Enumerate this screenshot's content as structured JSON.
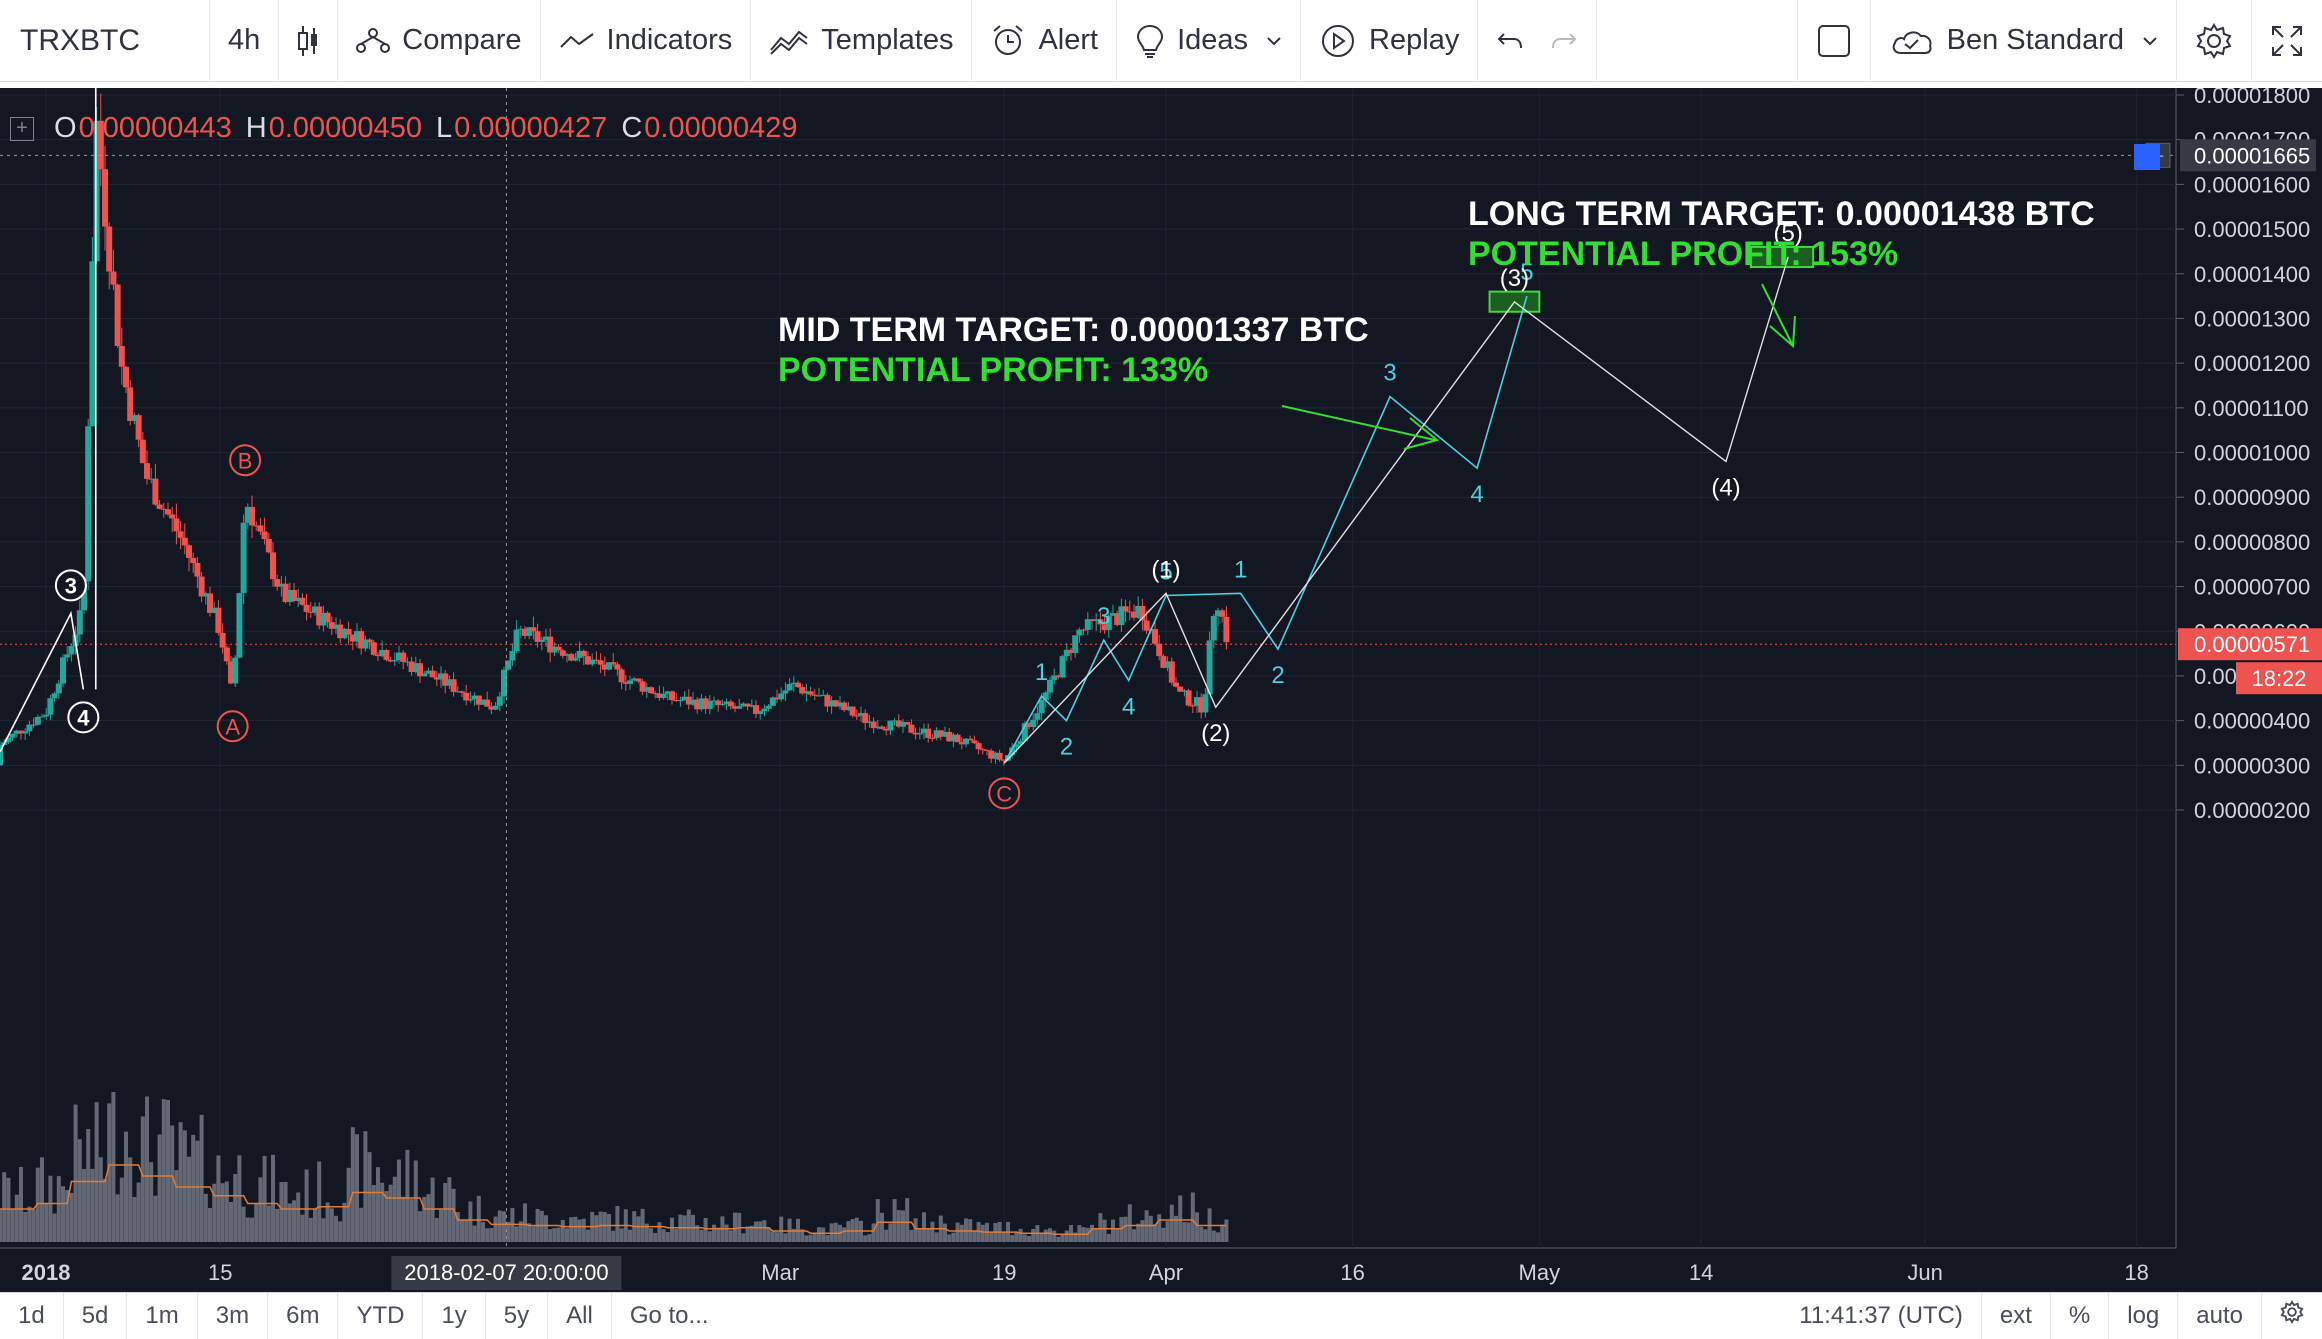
{
  "toolbar": {
    "symbol": "TRXBTC",
    "interval": "4h",
    "compare": "Compare",
    "indicators": "Indicators",
    "templates": "Templates",
    "alert": "Alert",
    "ideas": "Ideas",
    "replay": "Replay",
    "user": "Ben Standard"
  },
  "legend": {
    "o_label": "O",
    "o_value": "0.00000443",
    "h_label": "H",
    "h_value": "0.00000450",
    "l_label": "L",
    "l_value": "0.00000427",
    "c_label": "C",
    "c_value": "0.00000429"
  },
  "annotations": {
    "mid_target": "MID TERM TARGET: 0.00001337 BTC",
    "mid_profit": "POTENTIAL PROFIT: 133%",
    "long_target": "LONG TERM TARGET: 0.00001438 BTC",
    "long_profit": "POTENTIAL PROFIT: 153%"
  },
  "bottom_bar": {
    "ranges": [
      "1d",
      "5d",
      "1m",
      "3m",
      "6m",
      "YTD",
      "1y",
      "5y",
      "All"
    ],
    "goto": "Go to...",
    "clock": "11:41:37 (UTC)",
    "ext": "ext",
    "percent": "%",
    "log": "log",
    "auto": "auto"
  },
  "colors": {
    "background": "#131722",
    "up": "#26a69a",
    "down": "#ef5350",
    "cyan": "#4dd0e1",
    "white_wave": "#e0e0e0",
    "target_box": "#1b5e20",
    "green_text": "#33dd33"
  },
  "chart_data": {
    "type": "candlestick",
    "symbol": "TRXBTC",
    "interval": "4h",
    "y_ticks": [
      "0.00001800",
      "0.00001700",
      "0.00001600",
      "0.00001500",
      "0.00001400",
      "0.00001300",
      "0.00001200",
      "0.00001100",
      "0.00001000",
      "0.00000900",
      "0.00000800",
      "0.00000700",
      "0.00000600",
      "0.00000500",
      "0.00000400",
      "0.00000300",
      "0.00000200"
    ],
    "ylim": [
      1.7e-06,
      1.83e-05
    ],
    "x_ticks": [
      "2018",
      "15",
      "Mar",
      "19",
      "Apr",
      "16",
      "May",
      "14",
      "Jun",
      "18"
    ],
    "crosshair_time": "2018-02-07 20:00:00",
    "crosshair_price": "0.00001665",
    "last_price": "0.00000571",
    "countdown": "18:22",
    "price_path": [
      {
        "date": "2017-12-26",
        "price": 3e-06
      },
      {
        "date": "2018-01-01",
        "price": 4.2e-06
      },
      {
        "date": "2018-01-04",
        "price": 6.5e-06
      },
      {
        "date": "2018-01-05",
        "price": 1.75e-05
      },
      {
        "date": "2018-01-07",
        "price": 1.2e-05
      },
      {
        "date": "2018-01-09",
        "price": 9.5e-06
      },
      {
        "date": "2018-01-12",
        "price": 8e-06
      },
      {
        "date": "2018-01-15",
        "price": 6e-06
      },
      {
        "date": "2018-01-16",
        "price": 4.5e-06
      },
      {
        "date": "2018-01-17",
        "price": 9e-06
      },
      {
        "date": "2018-01-20",
        "price": 6.8e-06
      },
      {
        "date": "2018-01-25",
        "price": 6e-06
      },
      {
        "date": "2018-02-01",
        "price": 5e-06
      },
      {
        "date": "2018-02-06",
        "price": 4.3e-06
      },
      {
        "date": "2018-02-08",
        "price": 6e-06
      },
      {
        "date": "2018-02-14",
        "price": 5.3e-06
      },
      {
        "date": "2018-02-20",
        "price": 4.5e-06
      },
      {
        "date": "2018-02-27",
        "price": 4.2e-06
      },
      {
        "date": "2018-03-02",
        "price": 4.8e-06
      },
      {
        "date": "2018-03-08",
        "price": 4e-06
      },
      {
        "date": "2018-03-15",
        "price": 3.6e-06
      },
      {
        "date": "2018-03-19",
        "price": 3.1e-06
      },
      {
        "date": "2018-03-22",
        "price": 4.4e-06
      },
      {
        "date": "2018-03-25",
        "price": 6e-06
      },
      {
        "date": "2018-03-30",
        "price": 6.5e-06
      },
      {
        "date": "2018-04-02",
        "price": 4.6e-06
      },
      {
        "date": "2018-04-04",
        "price": 4.3e-06
      },
      {
        "date": "2018-04-05",
        "price": 6.9e-06
      },
      {
        "date": "2018-04-06",
        "price": 5.71e-06
      }
    ],
    "volume_profile": [
      0.3,
      0.35,
      0.55,
      0.7,
      0.6,
      0.5,
      0.42,
      0.35,
      0.3,
      0.32,
      0.45,
      0.4,
      0.3,
      0.2,
      0.16,
      0.15,
      0.14,
      0.15,
      0.14,
      0.13,
      0.12,
      0.13,
      0.1,
      0.08,
      0.1,
      0.18,
      0.12,
      0.1,
      0.09,
      0.08,
      0.07,
      0.12,
      0.15,
      0.2,
      0.15,
      0.25
    ],
    "wave_labels_cyan": [
      {
        "label": "1",
        "date": "2018-03-22",
        "price": 4.55e-06
      },
      {
        "label": "2",
        "date": "2018-03-24",
        "price": 4e-06
      },
      {
        "label": "3",
        "date": "2018-03-27",
        "price": 5.8e-06
      },
      {
        "label": "4",
        "date": "2018-03-29",
        "price": 4.9e-06
      },
      {
        "label": "5",
        "date": "2018-04-01",
        "price": 6.8e-06
      },
      {
        "label": "1",
        "date": "2018-04-07",
        "price": 6.85e-06
      },
      {
        "label": "2",
        "date": "2018-04-10",
        "price": 5.6e-06
      },
      {
        "label": "3",
        "date": "2018-04-19",
        "price": 1.125e-05
      },
      {
        "label": "4",
        "date": "2018-04-26",
        "price": 9.65e-06
      },
      {
        "label": "5",
        "date": "2018-04-30",
        "price": 1.35e-05
      }
    ],
    "wave_labels_white": [
      {
        "label": "(1)",
        "date": "2018-04-01",
        "price": 6.85e-06
      },
      {
        "label": "(2)",
        "date": "2018-04-05",
        "price": 4.3e-06
      },
      {
        "label": "(3)",
        "date": "2018-04-29",
        "price": 1.337e-05
      },
      {
        "label": "(4)",
        "date": "2018-05-16",
        "price": 9.8e-06
      },
      {
        "label": "(5)",
        "date": "2018-05-21",
        "price": 1.438e-05
      }
    ],
    "abc_labels": [
      {
        "label": "A",
        "date": "2018-01-16",
        "price": 4.5e-06
      },
      {
        "label": "B",
        "date": "2018-01-17",
        "price": 9.2e-06
      },
      {
        "label": "C",
        "date": "2018-03-19",
        "price": 3e-06
      }
    ],
    "left_labels": [
      {
        "label": "3",
        "date": "2018-01-03",
        "price": 6.4e-06
      },
      {
        "label": "4",
        "date": "2018-01-04",
        "price": 4.7e-06
      }
    ],
    "target_boxes": [
      {
        "name": "mid",
        "price_low": 1.315e-05,
        "price_high": 1.36e-05
      },
      {
        "name": "long",
        "price_low": 1.415e-05,
        "price_high": 1.46e-05
      }
    ]
  }
}
